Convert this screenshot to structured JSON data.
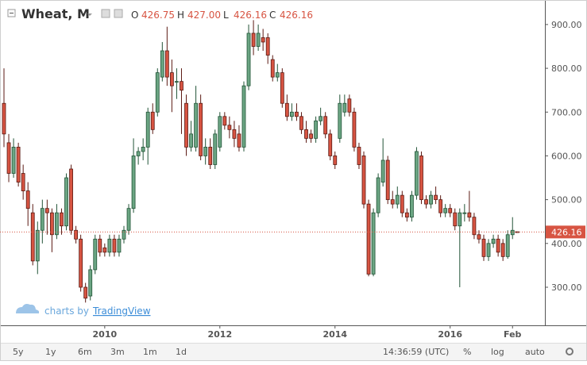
{
  "chart_data": {
    "type": "candlestick",
    "title": "Wheat, M",
    "ohlc_legend": [
      {
        "label": "O",
        "value": "426.75"
      },
      {
        "label": "H",
        "value": "427.00"
      },
      {
        "label": "L",
        "value": "426.16"
      },
      {
        "label": "C",
        "value": "426.16"
      }
    ],
    "x": [
      "2008-04",
      "2008-05",
      "2008-06",
      "2008-07",
      "2008-08",
      "2008-09",
      "2008-10",
      "2008-11",
      "2008-12",
      "2009-01",
      "2009-02",
      "2009-03",
      "2009-04",
      "2009-05",
      "2009-06",
      "2009-07",
      "2009-08",
      "2009-09",
      "2009-10",
      "2009-11",
      "2009-12",
      "2010-01",
      "2010-02",
      "2010-03",
      "2010-04",
      "2010-05",
      "2010-06",
      "2010-07",
      "2010-08",
      "2010-09",
      "2010-10",
      "2010-11",
      "2010-12",
      "2011-01",
      "2011-02",
      "2011-03",
      "2011-04",
      "2011-05",
      "2011-06",
      "2011-07",
      "2011-08",
      "2011-09",
      "2011-10",
      "2011-11",
      "2011-12",
      "2012-01",
      "2012-02",
      "2012-03",
      "2012-04",
      "2012-05",
      "2012-06",
      "2012-07",
      "2012-08",
      "2012-09",
      "2012-10",
      "2012-11",
      "2012-12",
      "2013-01",
      "2013-02",
      "2013-03",
      "2013-04",
      "2013-05",
      "2013-06",
      "2013-07",
      "2013-08",
      "2013-09",
      "2013-10",
      "2013-11",
      "2013-12",
      "2014-01",
      "2014-02",
      "2014-03",
      "2014-04",
      "2014-05",
      "2014-06",
      "2014-07",
      "2014-08",
      "2014-09",
      "2014-10",
      "2014-11",
      "2014-12",
      "2015-01",
      "2015-02",
      "2015-03",
      "2015-04",
      "2015-05",
      "2015-06",
      "2015-07",
      "2015-08",
      "2015-09",
      "2015-10",
      "2015-11",
      "2015-12",
      "2016-01",
      "2016-02",
      "2016-03",
      "2016-04",
      "2016-05",
      "2016-06",
      "2016-07",
      "2016-08",
      "2016-09",
      "2016-10",
      "2016-11",
      "2016-12",
      "2017-01",
      "2017-02",
      "2017-03"
    ],
    "series": [
      {
        "name": "Wheat, M",
        "open": [
          720,
          630,
          560,
          620,
          560,
          520,
          470,
          360,
          430,
          480,
          470,
          420,
          470,
          440,
          570,
          430,
          410,
          300,
          280,
          340,
          410,
          390,
          380,
          410,
          380,
          410,
          430,
          480,
          600,
          610,
          620,
          700,
          700,
          780,
          840,
          790,
          770,
          770,
          720,
          620,
          620,
          720,
          600,
          620,
          580,
          620,
          690,
          670,
          660,
          650,
          620,
          760,
          880,
          850,
          870,
          870,
          820,
          780,
          790,
          720,
          690,
          700,
          690,
          660,
          650,
          640,
          680,
          690,
          650,
          600,
          640,
          700,
          730,
          700,
          620,
          600,
          490,
          330,
          470,
          540,
          590,
          500,
          490,
          510,
          470,
          460,
          510,
          600,
          500,
          490,
          510,
          500,
          470,
          480,
          470,
          440,
          470,
          470,
          460,
          420,
          410,
          370,
          400,
          410,
          400,
          370,
          420,
          426.75
        ],
        "high": [
          800,
          650,
          640,
          630,
          580,
          540,
          490,
          450,
          500,
          500,
          480,
          490,
          480,
          560,
          580,
          440,
          420,
          310,
          350,
          420,
          420,
          400,
          420,
          420,
          420,
          440,
          490,
          640,
          620,
          640,
          710,
          720,
          800,
          860,
          895,
          820,
          800,
          800,
          740,
          680,
          760,
          740,
          640,
          640,
          660,
          700,
          700,
          690,
          680,
          670,
          770,
          900,
          910,
          900,
          890,
          880,
          830,
          810,
          800,
          740,
          720,
          720,
          700,
          680,
          660,
          690,
          710,
          700,
          660,
          610,
          740,
          740,
          740,
          710,
          630,
          610,
          500,
          480,
          560,
          640,
          600,
          520,
          530,
          520,
          480,
          520,
          620,
          610,
          510,
          520,
          530,
          510,
          490,
          490,
          480,
          480,
          490,
          520,
          470,
          430,
          420,
          410,
          420,
          420,
          410,
          430,
          460,
          427
        ],
        "low": [
          620,
          540,
          550,
          530,
          500,
          440,
          350,
          330,
          400,
          420,
          380,
          410,
          420,
          430,
          420,
          400,
          290,
          265,
          270,
          330,
          370,
          370,
          370,
          370,
          370,
          400,
          420,
          470,
          580,
          590,
          580,
          650,
          690,
          770,
          760,
          700,
          730,
          650,
          600,
          610,
          610,
          590,
          580,
          570,
          570,
          610,
          660,
          640,
          620,
          610,
          610,
          750,
          830,
          840,
          840,
          810,
          770,
          770,
          710,
          680,
          680,
          680,
          650,
          630,
          630,
          630,
          670,
          640,
          590,
          570,
          630,
          690,
          690,
          610,
          570,
          480,
          325,
          325,
          460,
          530,
          490,
          480,
          480,
          460,
          450,
          450,
          500,
          490,
          480,
          480,
          490,
          460,
          460,
          460,
          430,
          300,
          450,
          450,
          410,
          400,
          360,
          360,
          390,
          370,
          360,
          365,
          410,
          426.16
        ],
        "close": [
          650,
          560,
          620,
          540,
          520,
          480,
          360,
          430,
          480,
          470,
          420,
          470,
          440,
          550,
          430,
          410,
          300,
          275,
          340,
          410,
          380,
          380,
          410,
          380,
          410,
          430,
          480,
          600,
          610,
          620,
          700,
          660,
          790,
          840,
          780,
          760,
          770,
          750,
          620,
          650,
          720,
          600,
          620,
          580,
          650,
          690,
          670,
          660,
          640,
          620,
          760,
          880,
          850,
          880,
          860,
          830,
          780,
          790,
          720,
          690,
          700,
          690,
          660,
          640,
          640,
          680,
          690,
          650,
          600,
          580,
          720,
          720,
          700,
          620,
          580,
          490,
          330,
          470,
          550,
          590,
          500,
          490,
          510,
          470,
          460,
          510,
          610,
          500,
          490,
          510,
          500,
          470,
          480,
          470,
          440,
          470,
          470,
          460,
          420,
          410,
          370,
          400,
          410,
          380,
          370,
          420,
          430,
          426.16
        ]
      }
    ],
    "up_color": "#6ba583",
    "down_color": "#d75442",
    "ylim": [
      213,
      956
    ],
    "yticks": [
      {
        "value": 300,
        "label": "300.00"
      },
      {
        "value": 400,
        "label": "400.00"
      },
      {
        "value": 500,
        "label": "500.00"
      },
      {
        "value": 600,
        "label": "600.00"
      },
      {
        "value": 700,
        "label": "700.00"
      },
      {
        "value": 800,
        "label": "800.00"
      },
      {
        "value": 900,
        "label": "900.00"
      }
    ],
    "xticks": [
      {
        "value": "2010-01",
        "label": "2010"
      },
      {
        "value": "2012-01",
        "label": "2012"
      },
      {
        "value": "2014-01",
        "label": "2014"
      },
      {
        "value": "2016-01",
        "label": "2016"
      },
      {
        "value": "2017-02",
        "label": "Feb"
      }
    ],
    "grid": false,
    "watermark": {
      "prefix": "charts by",
      "brand": "TradingView"
    },
    "toolbar": {
      "ranges": [
        "5y",
        "1y",
        "6m",
        "3m",
        "1m",
        "1d"
      ],
      "clock": "14:36:59 (UTC)",
      "options": [
        "%",
        "log",
        "auto"
      ]
    }
  }
}
